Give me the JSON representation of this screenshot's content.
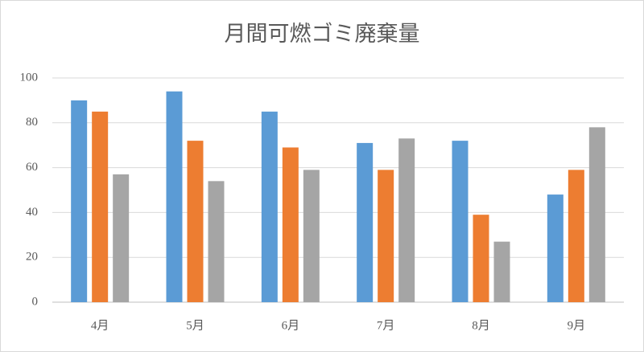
{
  "chart_data": {
    "type": "bar",
    "title": "月間可燃ゴミ廃棄量",
    "categories": [
      "4月",
      "5月",
      "6月",
      "7月",
      "8月",
      "9月"
    ],
    "series": [
      {
        "color": "#5b9bd5",
        "values": [
          90,
          94,
          85,
          71,
          72,
          48
        ]
      },
      {
        "color": "#ed7d31",
        "values": [
          85,
          72,
          69,
          59,
          39,
          59
        ]
      },
      {
        "color": "#a5a5a5",
        "values": [
          57,
          54,
          59,
          73,
          27,
          78
        ]
      }
    ],
    "ylim": [
      0,
      100
    ],
    "yticks": [
      0,
      20,
      40,
      60,
      80,
      100
    ],
    "grid": true
  }
}
